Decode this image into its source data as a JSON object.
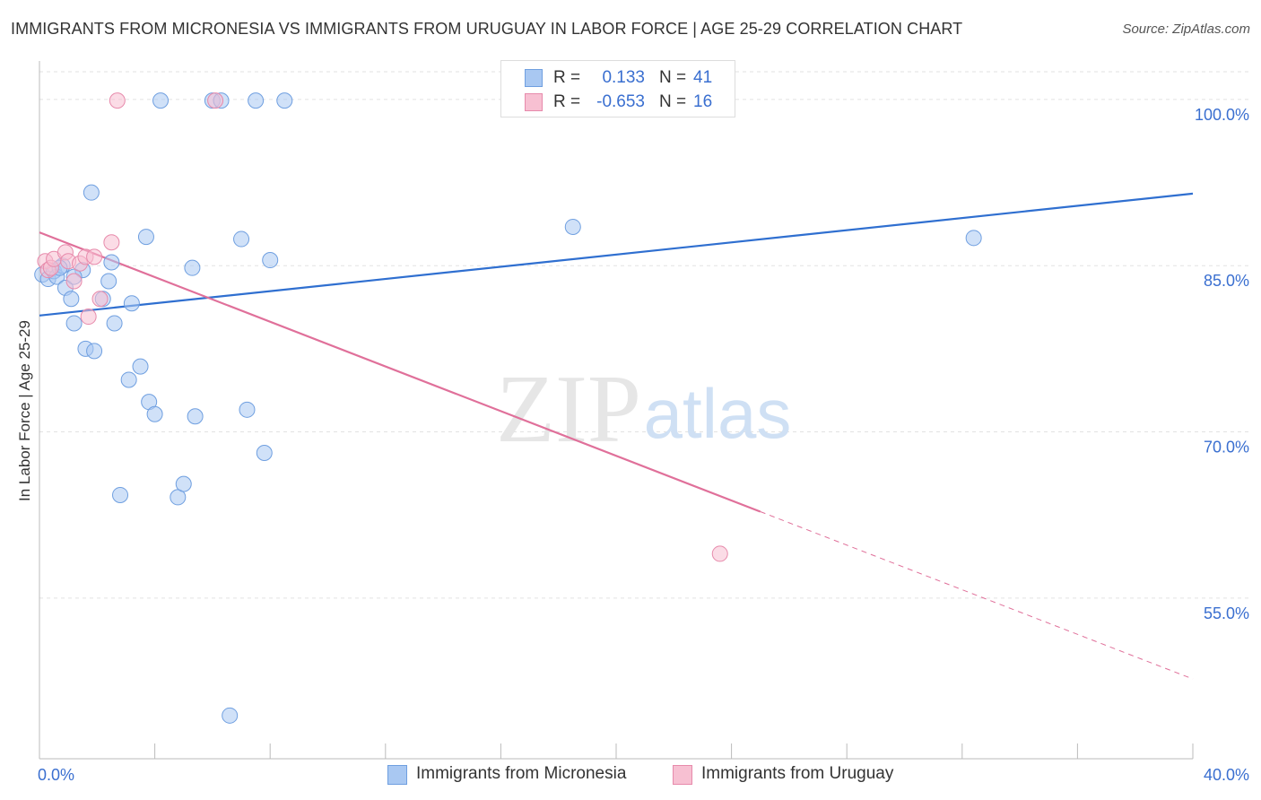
{
  "header": {
    "title": "IMMIGRANTS FROM MICRONESIA VS IMMIGRANTS FROM URUGUAY IN LABOR FORCE | AGE 25-29 CORRELATION CHART",
    "source": "Source: ZipAtlas.com"
  },
  "watermark": {
    "zip": "ZIP",
    "atlas": "atlas"
  },
  "stats": [
    {
      "r_label": "R =",
      "r_value": "0.133",
      "n_label": "N =",
      "n_value": "41",
      "color": "#a9c8f2",
      "border": "#6f9fe0"
    },
    {
      "r_label": "R =",
      "r_value": "-0.653",
      "n_label": "N =",
      "n_value": "16",
      "color": "#f7c0d2",
      "border": "#e78aab"
    }
  ],
  "chart_data": {
    "type": "scatter",
    "title": "IMMIGRANTS FROM MICRONESIA VS IMMIGRANTS FROM URUGUAY IN LABOR FORCE | AGE 25-29 CORRELATION CHART",
    "xlabel": "",
    "ylabel": "In Labor Force | Age 25-29",
    "xlim": [
      0,
      40
    ],
    "ylim": [
      40.5,
      102.5
    ],
    "x_tick_labels": [
      "0.0%",
      "40.0%"
    ],
    "y_ticks": [
      55,
      70,
      85,
      100
    ],
    "y_tick_labels": [
      "55.0%",
      "70.0%",
      "85.0%",
      "100.0%"
    ],
    "grid": true,
    "legend_position": "bottom-center",
    "series": [
      {
        "name": "Immigrants from Micronesia",
        "color": "#6f9fe0",
        "fill": "#a9c8f2",
        "trend": {
          "x0": 0,
          "y0": 80.5,
          "x1": 40,
          "y1": 91.5
        },
        "points": [
          [
            0.1,
            84.2
          ],
          [
            0.3,
            83.8
          ],
          [
            0.5,
            84.5
          ],
          [
            0.6,
            84.0
          ],
          [
            0.8,
            85.0
          ],
          [
            0.9,
            83.0
          ],
          [
            1.1,
            82.0
          ],
          [
            1.2,
            79.8
          ],
          [
            1.5,
            84.6
          ],
          [
            1.6,
            77.5
          ],
          [
            1.8,
            91.6
          ],
          [
            1.9,
            77.3
          ],
          [
            2.2,
            82.0
          ],
          [
            2.4,
            83.6
          ],
          [
            2.5,
            85.3
          ],
          [
            2.6,
            79.8
          ],
          [
            2.8,
            64.3
          ],
          [
            3.1,
            74.7
          ],
          [
            3.2,
            81.6
          ],
          [
            3.5,
            75.9
          ],
          [
            3.7,
            87.6
          ],
          [
            3.8,
            72.7
          ],
          [
            4.0,
            71.6
          ],
          [
            4.2,
            99.9
          ],
          [
            4.8,
            64.1
          ],
          [
            5.0,
            65.3
          ],
          [
            5.3,
            84.8
          ],
          [
            5.4,
            71.4
          ],
          [
            6.0,
            99.9
          ],
          [
            6.3,
            99.9
          ],
          [
            6.6,
            44.4
          ],
          [
            7.0,
            87.4
          ],
          [
            7.2,
            72.0
          ],
          [
            7.5,
            99.9
          ],
          [
            7.8,
            68.1
          ],
          [
            8.0,
            85.5
          ],
          [
            8.5,
            99.9
          ],
          [
            18.5,
            88.5
          ],
          [
            32.4,
            87.5
          ],
          [
            1.2,
            84.0
          ],
          [
            0.7,
            84.8
          ]
        ]
      },
      {
        "name": "Immigrants from Uruguay",
        "color": "#e78aab",
        "fill": "#f7c0d2",
        "trend": {
          "x0": 0,
          "y0": 88.0,
          "x1": 25.0,
          "y1": 62.8,
          "dash_to_x": 40,
          "dash_to_y": 47.7
        },
        "points": [
          [
            0.2,
            85.4
          ],
          [
            0.3,
            84.6
          ],
          [
            0.4,
            84.8
          ],
          [
            0.5,
            85.6
          ],
          [
            0.9,
            86.2
          ],
          [
            1.0,
            85.4
          ],
          [
            1.2,
            83.6
          ],
          [
            1.4,
            85.2
          ],
          [
            1.6,
            85.8
          ],
          [
            1.7,
            80.4
          ],
          [
            1.9,
            85.8
          ],
          [
            2.1,
            82.0
          ],
          [
            2.5,
            87.1
          ],
          [
            2.7,
            99.9
          ],
          [
            6.1,
            99.9
          ],
          [
            23.6,
            59.0
          ]
        ]
      }
    ]
  }
}
